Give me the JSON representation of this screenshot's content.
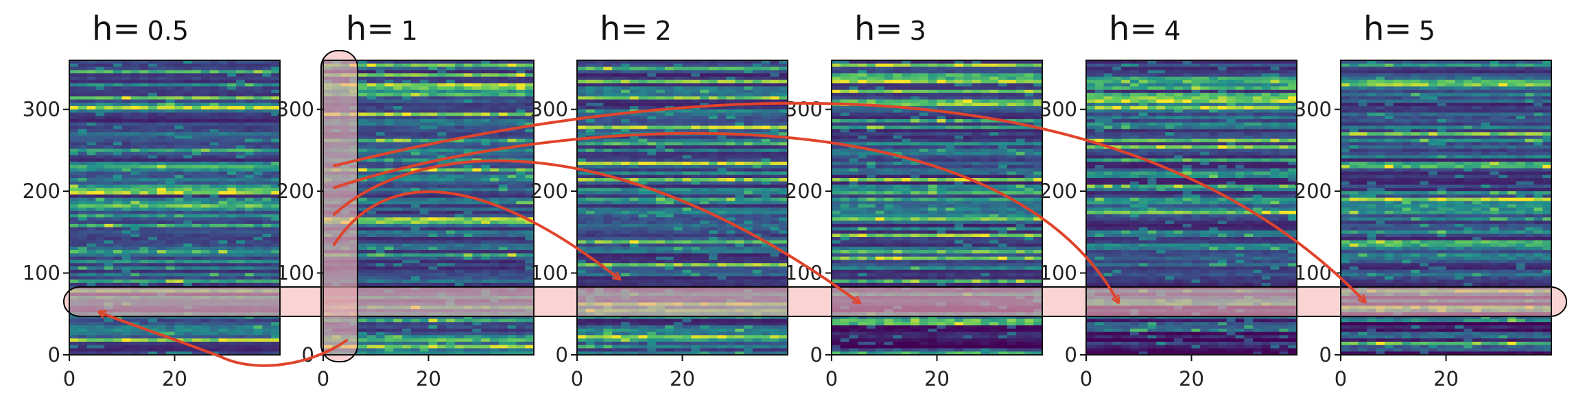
{
  "chart_data": {
    "type": "heatmap",
    "colormap": "viridis",
    "panels": [
      {
        "title_prefix": "h=",
        "title_value": "0.5",
        "xlim": [
          0,
          40
        ],
        "ylim": [
          0,
          360
        ],
        "xticks": [
          "0",
          "20"
        ],
        "yticks": [
          "0",
          "100",
          "200",
          "300"
        ]
      },
      {
        "title_prefix": "h=",
        "title_value": "1",
        "xlim": [
          0,
          40
        ],
        "ylim": [
          0,
          360
        ],
        "xticks": [
          "0",
          "20"
        ],
        "yticks": [
          "0",
          "100",
          "200",
          "300"
        ]
      },
      {
        "title_prefix": "h=",
        "title_value": "2",
        "xlim": [
          0,
          40
        ],
        "ylim": [
          0,
          360
        ],
        "xticks": [
          "0",
          "20"
        ],
        "yticks": [
          "0",
          "100",
          "200",
          "300"
        ]
      },
      {
        "title_prefix": "h=",
        "title_value": "3",
        "xlim": [
          0,
          40
        ],
        "ylim": [
          0,
          360
        ],
        "xticks": [
          "0",
          "20"
        ],
        "yticks": [
          "0",
          "100",
          "200",
          "300"
        ]
      },
      {
        "title_prefix": "h=",
        "title_value": "4",
        "xlim": [
          0,
          40
        ],
        "ylim": [
          0,
          360
        ],
        "xticks": [
          "0",
          "20"
        ],
        "yticks": [
          "0",
          "100",
          "200",
          "300"
        ]
      },
      {
        "title_prefix": "h=",
        "title_value": "5",
        "xlim": [
          0,
          40
        ],
        "ylim": [
          0,
          360
        ],
        "xticks": [
          "0",
          "20"
        ],
        "yticks": [
          "0",
          "100",
          "200",
          "300"
        ]
      }
    ],
    "highlight_band": {
      "y_range": [
        47,
        83
      ],
      "color": "#f7b6b6"
    },
    "highlight_column": {
      "panel": 1,
      "x_range": [
        0,
        6
      ],
      "color": "#f7b6b6"
    },
    "arrows": [
      {
        "from_panel": 1,
        "to_panel": 0,
        "color": "#e0442b"
      },
      {
        "from_panel": 1,
        "to_panel": 2,
        "color": "#e0442b"
      },
      {
        "from_panel": 1,
        "to_panel": 3,
        "color": "#e0442b"
      },
      {
        "from_panel": 1,
        "to_panel": 4,
        "color": "#e0442b"
      },
      {
        "from_panel": 1,
        "to_panel": 5,
        "color": "#e0442b"
      }
    ]
  }
}
